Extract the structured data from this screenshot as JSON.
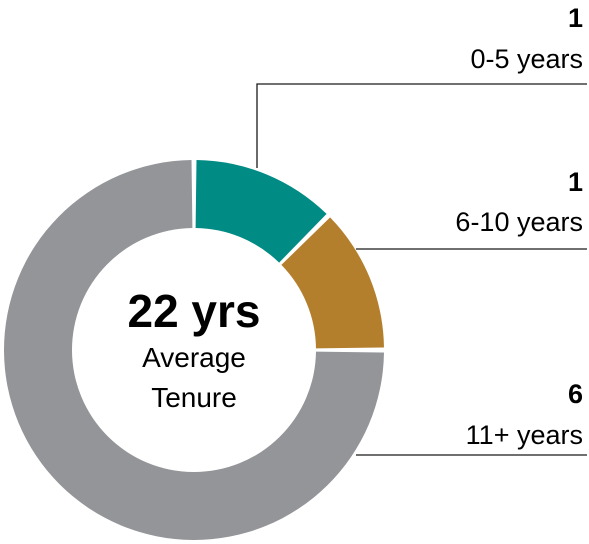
{
  "chart_data": {
    "type": "pie",
    "variant": "donut",
    "center": {
      "value": "22 yrs",
      "label_line1": "Average",
      "label_line2": "Tenure"
    },
    "slices": [
      {
        "label": "0-5 years",
        "value": 1,
        "color": "#008c84"
      },
      {
        "label": "6-10 years",
        "value": 1,
        "color": "#b47f2c"
      },
      {
        "label": "11+ years",
        "value": 6,
        "color": "#939598"
      }
    ],
    "start_angle_deg": 0,
    "direction": "clockwise"
  }
}
